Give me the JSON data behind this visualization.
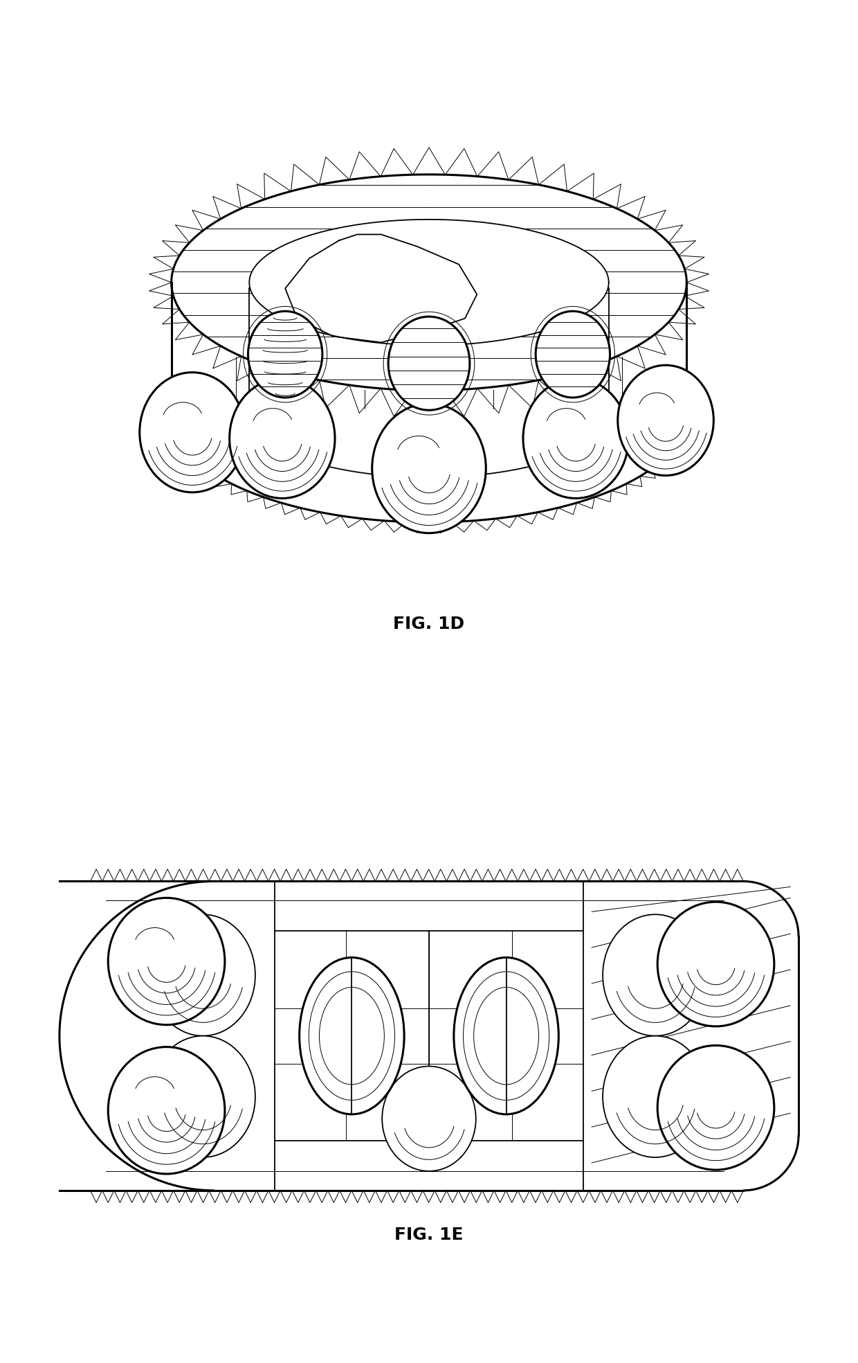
{
  "fig_width": 12.4,
  "fig_height": 19.68,
  "dpi": 100,
  "bg": "#ffffff",
  "lc": "#000000",
  "label_1d": "FIG. 1D",
  "label_1e": "FIG. 1E",
  "lfs": 18,
  "lfw": "bold",
  "lw1": 0.7,
  "lw2": 1.3,
  "lw3": 2.2
}
